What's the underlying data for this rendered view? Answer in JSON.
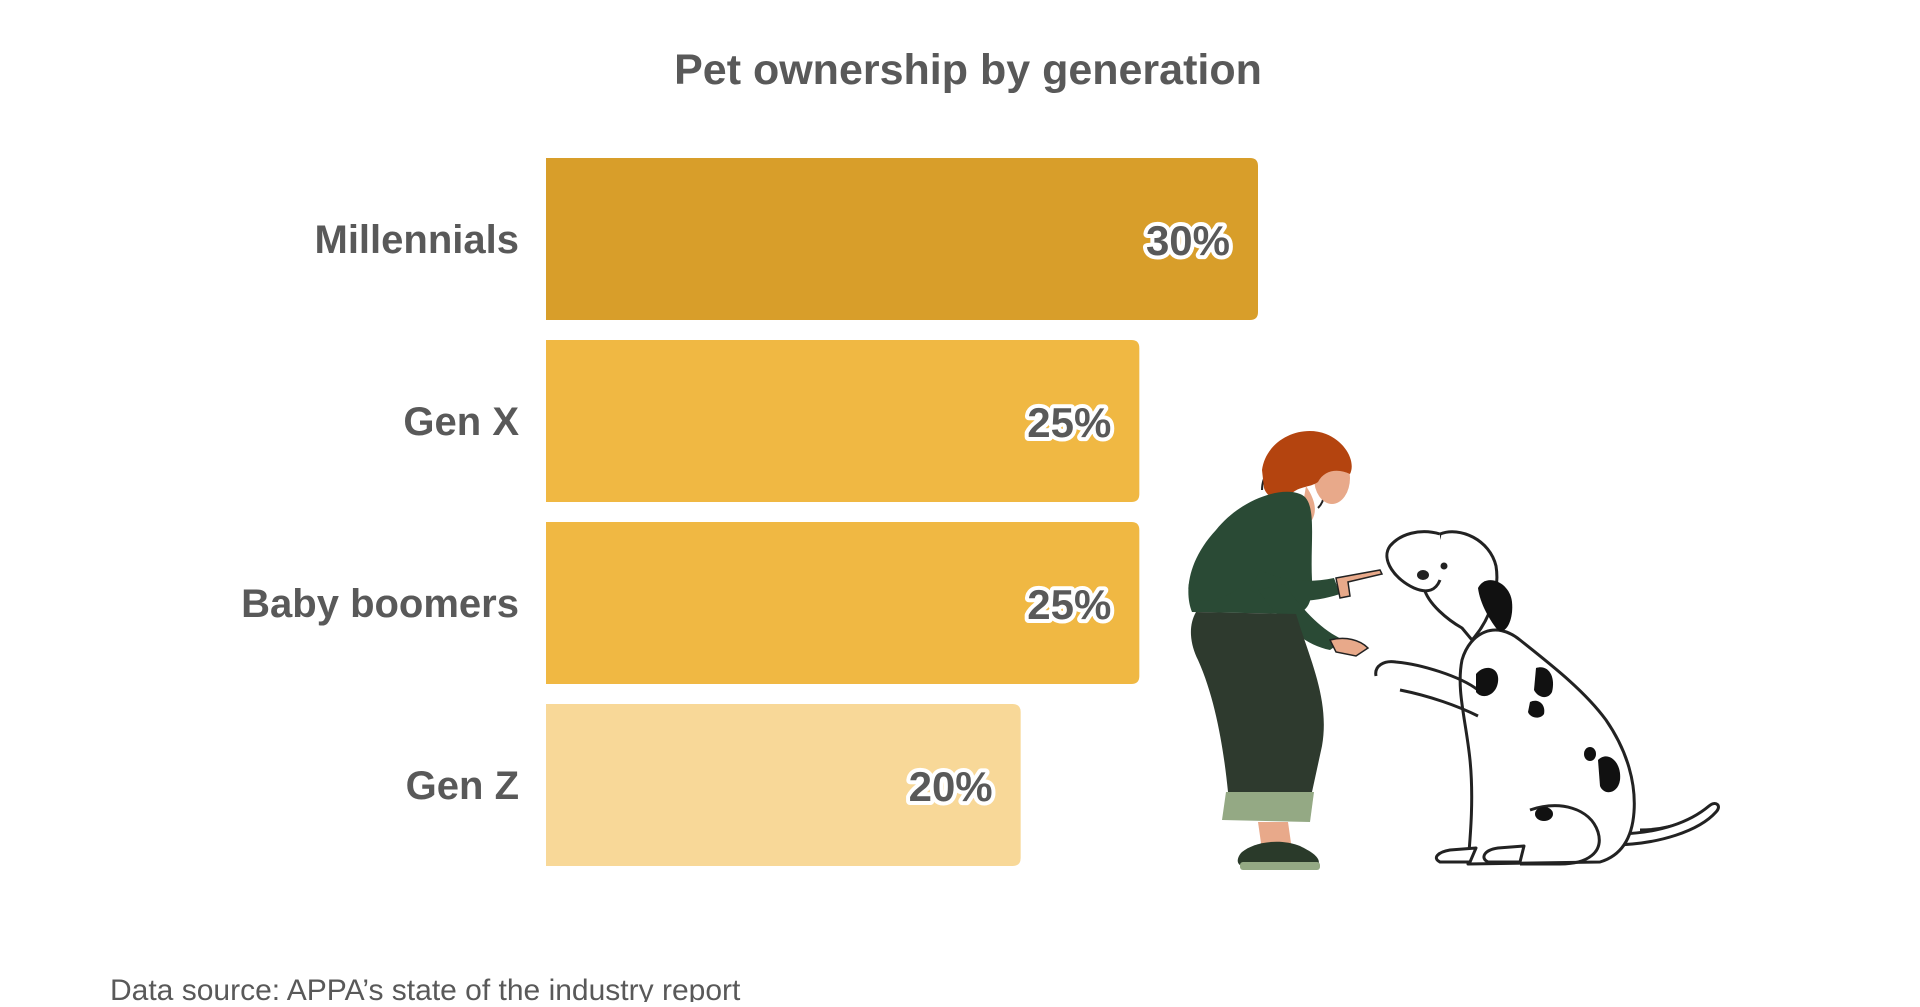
{
  "chart_data": {
    "type": "bar",
    "orientation": "horizontal",
    "title": "Pet ownership by generation",
    "categories": [
      "Millennials",
      "Gen X",
      "Baby boomers",
      "Gen Z"
    ],
    "values": [
      30,
      25,
      25,
      20
    ],
    "value_labels": [
      "30%",
      "25%",
      "25%",
      "20%"
    ],
    "unit": "%",
    "xlabel": "",
    "ylabel": "",
    "xlim": [
      0,
      30
    ],
    "grid": false,
    "legend": "none",
    "bar_colors": [
      "#D89E2A",
      "#F0B843",
      "#F0B843",
      "#F8D898"
    ],
    "source_note": "Data source: APPA’s state of the industry report",
    "illustration": "person-shaking-paw-with-dalmatian-dog"
  },
  "colors": {
    "text": "#595959",
    "label_outline": "#ffffff"
  }
}
